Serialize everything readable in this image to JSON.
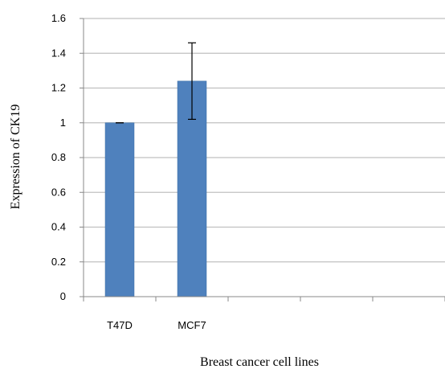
{
  "chart_data": {
    "type": "bar",
    "xlabel": "Breast cancer cell lines",
    "ylabel": "Expression of CK19",
    "categories": [
      "T47D",
      "MCF7",
      "",
      "",
      ""
    ],
    "values": [
      1.0,
      1.24,
      null,
      null,
      null
    ],
    "error_low": [
      1.0,
      1.02,
      null,
      null,
      null
    ],
    "error_high": [
      1.0,
      1.46,
      null,
      null,
      null
    ],
    "ylim": [
      0,
      1.6
    ],
    "yticks": [
      "0",
      "0.2",
      "0.4",
      "0.6",
      "0.8",
      "1",
      "1.2",
      "1.4",
      "1.6"
    ],
    "grid": true,
    "legend": "none",
    "colors": {
      "bar": "#4f81bd",
      "bar_edge": "#3a6ea5",
      "grid": "#c0c0c0",
      "axis": "#888888",
      "error": "#000000"
    }
  }
}
